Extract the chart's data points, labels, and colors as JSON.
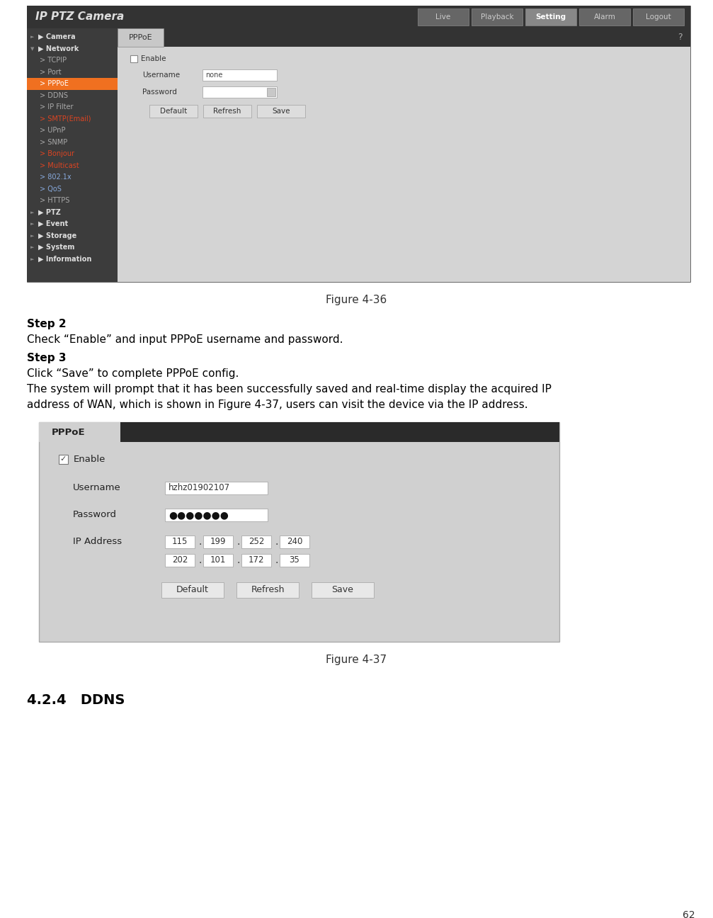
{
  "page_bg": "#ffffff",
  "page_number": "62",
  "figure36_caption": "Figure 4-36",
  "figure37_caption": "Figure 4-37",
  "step2_bold": "Step 2",
  "step2_text": "Check “Enable” and input PPPoE username and password.",
  "step3_bold": "Step 3",
  "step3_text": "Click “Save” to complete PPPoE config.",
  "body_text_line1": "The system will prompt that it has been successfully saved and real-time display the acquired IP",
  "body_text_line2": "address of WAN, which is shown in Figure 4-37, users can visit the device via the IP address.",
  "section_title": "4.2.4   DDNS",
  "fig36": {
    "outer_bg": "#3c3c3c",
    "header_bg": "#333333",
    "sidebar_bg": "#3c3c3c",
    "content_bg": "#cccccc",
    "tab_strip_bg": "#444444",
    "title": "IP PTZ Camera",
    "title_color": "#e8e8e8",
    "tabs": [
      "Live",
      "Playback",
      "Setting",
      "Alarm",
      "Logout"
    ],
    "active_tab": "Setting",
    "tab_active_bg": "#888888",
    "tab_inactive_bg": "#666666",
    "tab_active_color": "#ffffff",
    "tab_inactive_color": "#cccccc",
    "menu_items": [
      "Camera",
      "Network",
      "TCPIP",
      "Port",
      "PPPoE",
      "DDNS",
      "IP Filter",
      "SMTP(Email)",
      "UPnP",
      "SNMP",
      "Bonjour",
      "Multicast",
      "802.1x",
      "QoS",
      "HTTPS",
      "PTZ",
      "Event",
      "Storage",
      "System",
      "Information"
    ],
    "submenu_items": [
      "TCPIP",
      "Port",
      "PPPoE",
      "DDNS",
      "IP Filter",
      "SMTP(Email)",
      "UPnP",
      "SNMP",
      "Bonjour",
      "Multicast",
      "802.1x",
      "QoS",
      "HTTPS"
    ],
    "active_menu": "PPPoE",
    "active_menu_bg": "#f07020",
    "menu_text_color": "#bbbbbb",
    "menu_bold_items": [
      "Camera",
      "Network",
      "PTZ",
      "Event",
      "Storage",
      "System",
      "Information"
    ],
    "menu_red_items": [
      "SMTP(Email)",
      "Bonjour",
      "Multicast"
    ],
    "menu_blue_items": [
      "802.1x",
      "QoS"
    ],
    "panel_title": "PPPoE",
    "enable_label": "Enable",
    "username_label": "Username",
    "username_value": "none",
    "password_label": "Password",
    "buttons": [
      "Default",
      "Refresh",
      "Save"
    ],
    "button_bg": "#dddddd",
    "button_ec": "#aaaaaa",
    "input_bg": "#ffffff",
    "input_ec": "#aaaaaa"
  },
  "fig37": {
    "outer_bg": "#d0d0d0",
    "header_bg": "#2a2a2a",
    "header_text": "PPPoE",
    "content_bg": "#d0d0d0",
    "enable_label": "Enable",
    "username_label": "Username",
    "username_value": "hzhz01902107",
    "password_label": "Password",
    "password_dots": "●●●●●●●",
    "ip_label": "IP Address",
    "ip_row1": [
      "115",
      "199",
      "252",
      "240"
    ],
    "ip_row2": [
      "202",
      "101",
      "172",
      "35"
    ],
    "buttons": [
      "Default",
      "Refresh",
      "Save"
    ],
    "input_bg": "#ffffff",
    "input_ec": "#aaaaaa",
    "btn_bg": "#e8e8e8",
    "btn_ec": "#aaaaaa",
    "text_color": "#222222"
  }
}
